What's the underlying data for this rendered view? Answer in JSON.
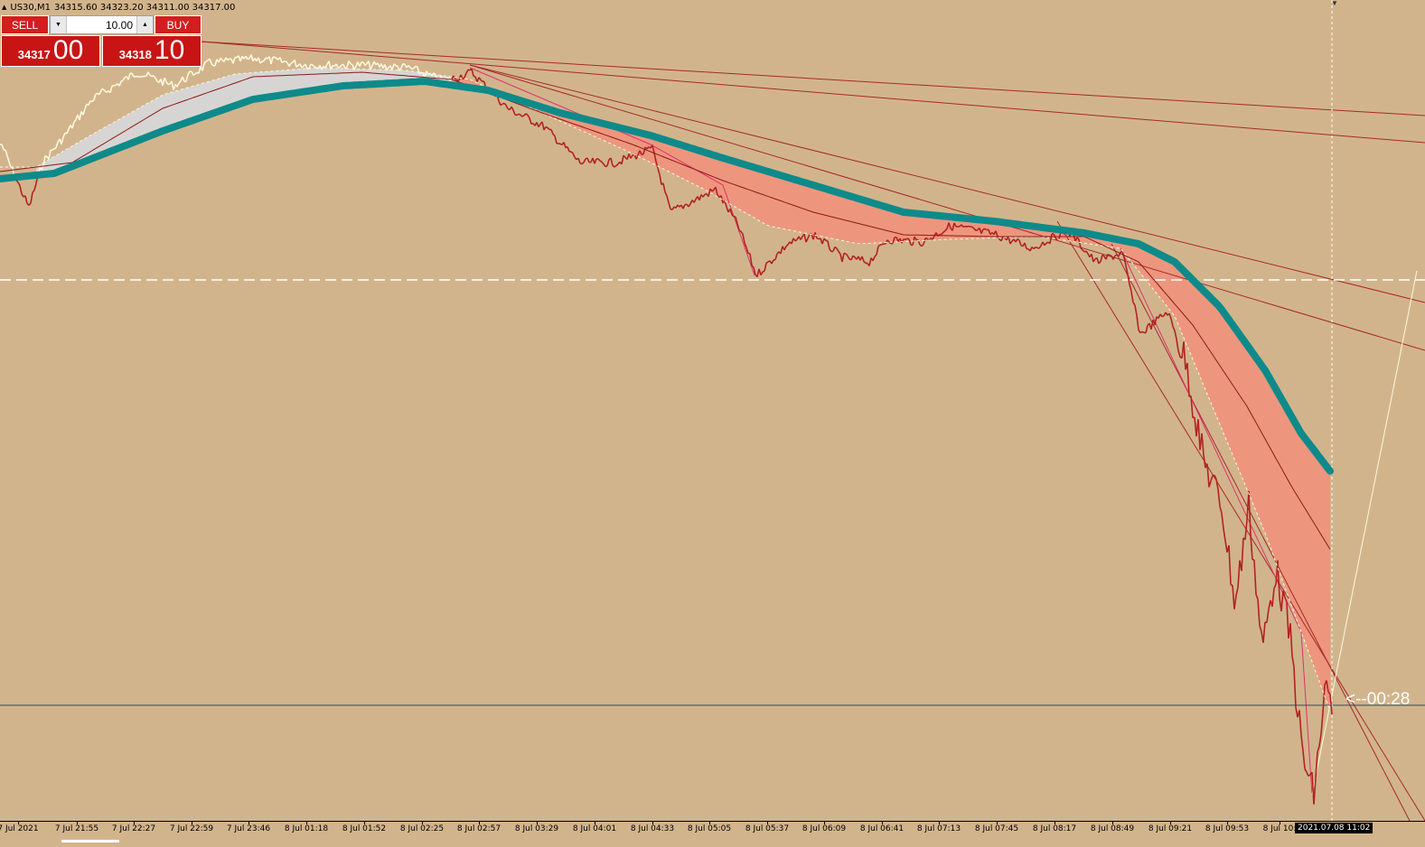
{
  "symbol": {
    "title": "US30,M1",
    "ohlc": "34315.60 34323.20 34311.00 34317.00"
  },
  "trade_panel": {
    "sell_label": "SELL",
    "buy_label": "BUY",
    "lot": "10.00",
    "sell_small": "34317",
    "sell_big": "00",
    "buy_small": "34318",
    "buy_big": "10"
  },
  "countdown": "<--00:28",
  "crosshair_time": "2021.07.08 11:02",
  "time_axis": [
    "7 Jul 2021",
    "7 Jul 21:55",
    "7 Jul 22:27",
    "7 Jul 22:59",
    "7 Jul 23:46",
    "8 Jul 01:18",
    "8 Jul 01:52",
    "8 Jul 02:25",
    "8 Jul 02:57",
    "8 Jul 03:29",
    "8 Jul 04:01",
    "8 Jul 04:33",
    "8 Jul 05:05",
    "8 Jul 05:37",
    "8 Jul 06:09",
    "8 Jul 06:41",
    "8 Jul 07:13",
    "8 Jul 07:45",
    "8 Jul 08:17",
    "8 Jul 08:49",
    "8 Jul 09:21",
    "8 Jul 09:53",
    "8 Jul 10:"
  ],
  "colors": {
    "background": "#d2b48c",
    "bear_candle": "#b22222",
    "bull_candle": "#fff8dc",
    "slow_ma": "#0e8a8a",
    "cloud_bear": "#ee957c",
    "cloud_bull": "#d7d7d7",
    "trendline": "#a52a2a",
    "panel_red": "#c81414"
  }
}
